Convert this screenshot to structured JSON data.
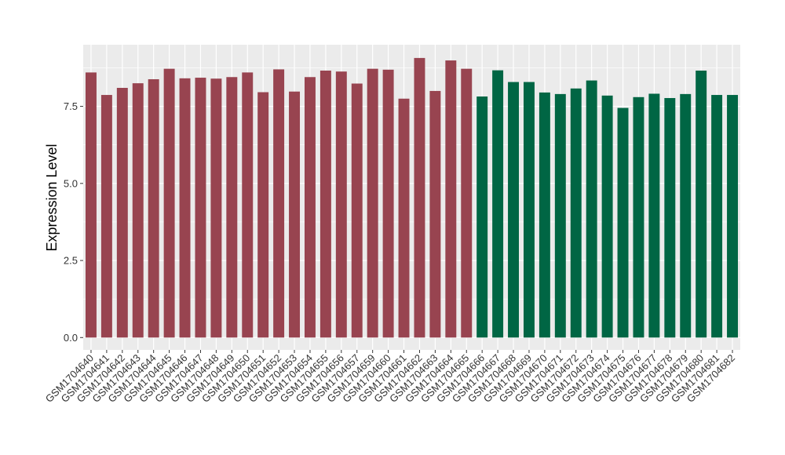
{
  "chart_data": {
    "type": "bar",
    "title": "",
    "xlabel": "",
    "ylabel": "Expression Level",
    "ylim": [
      -0.4,
      9.5
    ],
    "y_ticks": [
      0.0,
      2.5,
      5.0,
      7.5
    ],
    "y_tick_labels": [
      "0.0",
      "2.5",
      "5.0",
      "7.5"
    ],
    "grid": true,
    "legend": "none",
    "background_color": "#ebebeb",
    "grid_color": "#ffffff",
    "group_colors": [
      "#984450",
      "#006644"
    ],
    "categories": [
      "GSM1704640",
      "GSM1704641",
      "GSM1704642",
      "GSM1704643",
      "GSM1704644",
      "GSM1704645",
      "GSM1704646",
      "GSM1704647",
      "GSM1704648",
      "GSM1704649",
      "GSM1704650",
      "GSM1704651",
      "GSM1704652",
      "GSM1704653",
      "GSM1704654",
      "GSM1704655",
      "GSM1704656",
      "GSM1704657",
      "GSM1704659",
      "GSM1704660",
      "GSM1704661",
      "GSM1704662",
      "GSM1704663",
      "GSM1704664",
      "GSM1704665",
      "GSM1704666",
      "GSM1704667",
      "GSM1704668",
      "GSM1704669",
      "GSM1704670",
      "GSM1704671",
      "GSM1704672",
      "GSM1704673",
      "GSM1704674",
      "GSM1704675",
      "GSM1704676",
      "GSM1704677",
      "GSM1704678",
      "GSM1704679",
      "GSM1704680",
      "GSM1704681",
      "GSM1704682"
    ],
    "values": [
      8.6,
      7.87,
      8.1,
      8.25,
      8.38,
      8.72,
      8.41,
      8.43,
      8.4,
      8.45,
      8.6,
      7.96,
      8.7,
      7.98,
      8.45,
      8.66,
      8.63,
      8.24,
      8.72,
      8.69,
      7.75,
      9.07,
      8.0,
      8.99,
      8.72,
      7.82,
      8.67,
      8.29,
      8.29,
      7.95,
      7.9,
      8.08,
      8.34,
      7.85,
      7.45,
      7.8,
      7.91,
      7.77,
      7.9,
      8.66,
      7.87,
      7.87
    ],
    "groups": [
      0,
      0,
      0,
      0,
      0,
      0,
      0,
      0,
      0,
      0,
      0,
      0,
      0,
      0,
      0,
      0,
      0,
      0,
      0,
      0,
      0,
      0,
      0,
      0,
      0,
      1,
      1,
      1,
      1,
      1,
      1,
      1,
      1,
      1,
      1,
      1,
      1,
      1,
      1,
      1,
      1,
      1
    ]
  }
}
